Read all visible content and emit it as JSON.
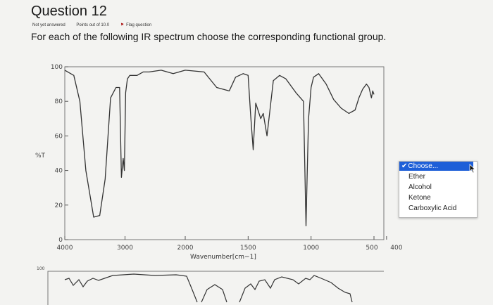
{
  "question": {
    "title": "Question 12",
    "status": "Not yet answered",
    "points": "Points out of 10.0",
    "flag_label": "Flag question",
    "prompt": "For each of the following IR spectrum choose the corresponding functional group."
  },
  "chart_data": {
    "type": "line",
    "ylabel": "%T",
    "xlabel": "Wavenumber[cm−1]",
    "yticks": [
      "100",
      "80",
      "60",
      "40",
      "20",
      "0"
    ],
    "xticks": [
      "4000",
      "3000",
      "2000",
      "1500",
      "1000",
      "500",
      "400"
    ],
    "ylim": [
      0,
      100
    ],
    "grid": false,
    "series": [
      {
        "x": [
          4000,
          3950,
          3850,
          3750,
          3650,
          3520,
          3420,
          3330,
          3240,
          3150,
          3090,
          3060,
          3030,
          3010,
          2990,
          2960,
          2920,
          2800,
          2700,
          2600,
          2400,
          2200,
          2000,
          1850,
          1750,
          1650,
          1600,
          1540,
          1500,
          1480,
          1460,
          1440,
          1400,
          1380,
          1350,
          1300,
          1250,
          1200,
          1120,
          1060,
          1040,
          1030,
          1020,
          1000,
          980,
          940,
          880,
          820,
          760,
          700,
          650,
          620,
          590,
          560,
          540,
          520,
          510,
          500
        ],
        "y": [
          98,
          97,
          95,
          80,
          40,
          13,
          14,
          35,
          82,
          88,
          88,
          36,
          47,
          40,
          85,
          93,
          95,
          95,
          97,
          97,
          98,
          96,
          98,
          97,
          88,
          86,
          94,
          96,
          95,
          72,
          52,
          79,
          70,
          73,
          60,
          92,
          95,
          93,
          85,
          80,
          8,
          40,
          70,
          88,
          94,
          96,
          90,
          81,
          76,
          73,
          75,
          82,
          87,
          90,
          88,
          82,
          86,
          84
        ]
      }
    ]
  },
  "dropdown": {
    "selected": "Choose...",
    "check": "✔",
    "options": [
      "Ether",
      "Alcohol",
      "Ketone",
      "Carboxylic Acid"
    ]
  },
  "next_chart": {
    "ytick_top": "100"
  }
}
